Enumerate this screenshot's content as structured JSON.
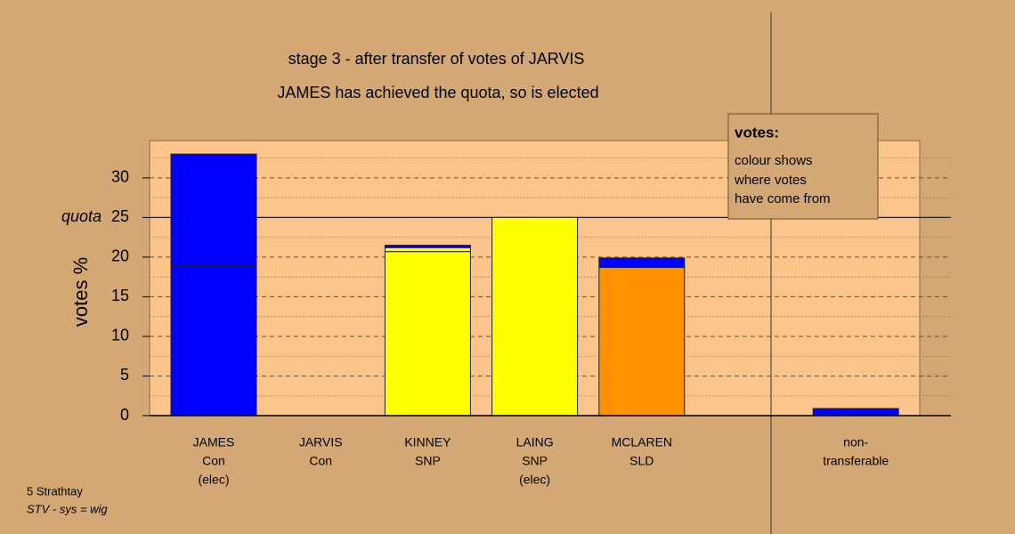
{
  "chart_data": {
    "type": "stacked-bar",
    "title": "stage 3 - after transfer of votes of JARVIS",
    "subtitle": "JAMES has achieved the quota, so is elected",
    "y_label": "votes %",
    "categories": [
      [
        "JAMES",
        "Con",
        "(elec)"
      ],
      [
        "JARVIS",
        "Con"
      ],
      [
        "KINNEY",
        "SNP"
      ],
      [
        "LAING",
        "SNP",
        "(elec)"
      ],
      [
        "MCLAREN",
        "SLD"
      ],
      null,
      [
        "non-",
        "transferable"
      ]
    ],
    "series": [
      {
        "color": "#0000ff",
        "values": [
          18.9,
          0,
          null,
          null,
          null,
          null,
          null
        ]
      },
      {
        "color": "#ffff00",
        "values": [
          null,
          null,
          20.7,
          25,
          null,
          null,
          null
        ]
      },
      {
        "color": "#ff9000",
        "values": [
          null,
          null,
          null,
          null,
          18.7,
          null,
          null
        ]
      },
      {
        "color": "#ffff00",
        "values": [
          null,
          null,
          0.5,
          null,
          null,
          null,
          null
        ]
      },
      {
        "color": "#0000ff",
        "values": [
          14.1,
          null,
          0.3,
          null,
          1.2,
          null,
          0.9
        ]
      }
    ],
    "ylim": [
      0,
      34.7
    ],
    "yticks": [
      0,
      5,
      10,
      15,
      20,
      25,
      30
    ],
    "minor_yticks": [
      2.5,
      7.5,
      12.5,
      17.5,
      22.5,
      27.5,
      32.5
    ],
    "grid": true,
    "quota": {
      "label": "quota",
      "value": 25
    },
    "legend": {
      "title": "votes:",
      "lines": [
        "colour shows",
        "where votes",
        "have come from"
      ]
    },
    "footer": [
      "5 Strathtay",
      "STV - sys = wig"
    ]
  }
}
